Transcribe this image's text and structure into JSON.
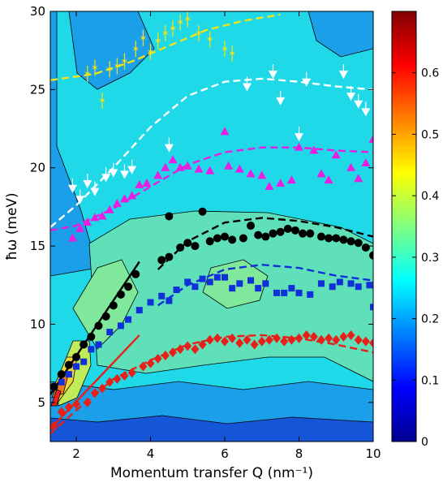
{
  "chart_data": {
    "type": "scatter",
    "title": "",
    "xlabel": "Momentum transfer Q (nm⁻¹)",
    "ylabel": "ħω (meV)",
    "xlim": [
      1.3,
      10
    ],
    "ylim": [
      2.5,
      30
    ],
    "x_ticks": [
      2,
      4,
      6,
      8,
      10
    ],
    "y_ticks": [
      5,
      10,
      15,
      20,
      25,
      30
    ],
    "grid": false,
    "background": "intensity contour map",
    "colorbar": {
      "min": 0,
      "max": 0.7,
      "ticks": [
        0,
        0.1,
        0.2,
        0.3,
        0.4,
        0.5,
        0.6
      ],
      "colormap": "jet"
    },
    "series": [
      {
        "marker": "star",
        "color": "#f2e21a",
        "points": [
          [
            2.3,
            26.0
          ],
          [
            2.5,
            26.4
          ],
          [
            2.7,
            24.3
          ],
          [
            2.9,
            26.3
          ],
          [
            3.1,
            26.5
          ],
          [
            3.3,
            26.8
          ],
          [
            3.6,
            27.6
          ],
          [
            3.8,
            28.3
          ],
          [
            4.0,
            27.4
          ],
          [
            4.2,
            28.1
          ],
          [
            4.4,
            28.6
          ],
          [
            4.6,
            28.9
          ],
          [
            4.8,
            29.3
          ],
          [
            5.0,
            29.5
          ],
          [
            5.3,
            28.6
          ],
          [
            5.6,
            28.2
          ],
          [
            6.0,
            27.6
          ],
          [
            6.2,
            27.3
          ]
        ]
      },
      {
        "marker": "triangle-down",
        "color": "#ffffff",
        "points": [
          [
            1.9,
            18.7
          ],
          [
            2.1,
            18.0
          ],
          [
            2.3,
            19.0
          ],
          [
            2.5,
            18.5
          ],
          [
            2.8,
            19.4
          ],
          [
            3.0,
            19.7
          ],
          [
            3.3,
            19.6
          ],
          [
            3.5,
            19.9
          ],
          [
            4.5,
            21.3
          ],
          [
            6.6,
            25.2
          ],
          [
            7.3,
            26.0
          ],
          [
            7.5,
            24.3
          ],
          [
            8.0,
            22.0
          ],
          [
            8.2,
            25.5
          ],
          [
            9.2,
            26.0
          ],
          [
            9.4,
            24.6
          ],
          [
            9.6,
            24.1
          ],
          [
            9.8,
            23.6
          ]
        ]
      },
      {
        "marker": "triangle-up",
        "color": "#e81ee0",
        "points": [
          [
            1.9,
            15.5
          ],
          [
            2.1,
            16.1
          ],
          [
            2.3,
            16.5
          ],
          [
            2.5,
            16.8
          ],
          [
            2.7,
            16.9
          ],
          [
            2.9,
            17.3
          ],
          [
            3.1,
            17.7
          ],
          [
            3.3,
            18.0
          ],
          [
            3.5,
            18.2
          ],
          [
            3.7,
            18.9
          ],
          [
            3.9,
            19.0
          ],
          [
            4.2,
            19.5
          ],
          [
            4.4,
            20.0
          ],
          [
            4.6,
            20.5
          ],
          [
            4.8,
            20.0
          ],
          [
            5.0,
            20.1
          ],
          [
            5.3,
            19.9
          ],
          [
            5.6,
            19.8
          ],
          [
            6.0,
            22.3
          ],
          [
            6.1,
            20.1
          ],
          [
            6.4,
            19.9
          ],
          [
            6.7,
            19.6
          ],
          [
            7.0,
            19.5
          ],
          [
            7.2,
            18.8
          ],
          [
            7.5,
            19.0
          ],
          [
            7.8,
            19.2
          ],
          [
            8.0,
            21.3
          ],
          [
            8.4,
            21.1
          ],
          [
            8.6,
            19.6
          ],
          [
            8.8,
            19.2
          ],
          [
            9.0,
            20.8
          ],
          [
            9.4,
            20.0
          ],
          [
            9.6,
            19.3
          ],
          [
            9.8,
            20.3
          ],
          [
            10.0,
            21.8
          ]
        ]
      },
      {
        "marker": "circle",
        "color": "#000000",
        "points": [
          [
            1.4,
            6.0
          ],
          [
            1.6,
            6.8
          ],
          [
            1.8,
            7.4
          ],
          [
            2.0,
            7.9
          ],
          [
            2.2,
            8.7
          ],
          [
            2.4,
            9.2
          ],
          [
            2.6,
            9.9
          ],
          [
            2.8,
            10.5
          ],
          [
            3.0,
            11.2
          ],
          [
            3.2,
            11.9
          ],
          [
            3.4,
            12.4
          ],
          [
            3.6,
            13.2
          ],
          [
            4.3,
            14.1
          ],
          [
            4.5,
            14.3
          ],
          [
            4.5,
            16.9
          ],
          [
            4.8,
            14.9
          ],
          [
            5.0,
            15.2
          ],
          [
            5.2,
            15.0
          ],
          [
            5.4,
            17.2
          ],
          [
            5.6,
            15.3
          ],
          [
            5.8,
            15.5
          ],
          [
            6.0,
            15.6
          ],
          [
            6.2,
            15.4
          ],
          [
            6.5,
            15.5
          ],
          [
            6.7,
            16.3
          ],
          [
            6.9,
            15.7
          ],
          [
            7.1,
            15.6
          ],
          [
            7.3,
            15.8
          ],
          [
            7.5,
            15.9
          ],
          [
            7.7,
            16.1
          ],
          [
            7.9,
            16.0
          ],
          [
            8.1,
            15.8
          ],
          [
            8.3,
            15.8
          ],
          [
            8.6,
            15.6
          ],
          [
            8.8,
            15.5
          ],
          [
            9.0,
            15.5
          ],
          [
            9.2,
            15.4
          ],
          [
            9.4,
            15.3
          ],
          [
            9.6,
            15.2
          ],
          [
            9.8,
            14.9
          ],
          [
            10.0,
            14.4
          ]
        ]
      },
      {
        "marker": "square",
        "color": "#1030d8",
        "points": [
          [
            1.6,
            6.3
          ],
          [
            1.8,
            6.8
          ],
          [
            2.0,
            7.3
          ],
          [
            2.2,
            7.6
          ],
          [
            2.4,
            8.4
          ],
          [
            2.6,
            8.7
          ],
          [
            2.9,
            9.5
          ],
          [
            3.2,
            9.9
          ],
          [
            3.4,
            10.3
          ],
          [
            3.7,
            10.9
          ],
          [
            4.0,
            11.4
          ],
          [
            4.3,
            11.8
          ],
          [
            4.5,
            11.5
          ],
          [
            4.7,
            12.2
          ],
          [
            5.0,
            12.7
          ],
          [
            5.2,
            12.4
          ],
          [
            5.4,
            12.9
          ],
          [
            5.6,
            12.7
          ],
          [
            5.8,
            13.0
          ],
          [
            6.0,
            13.0
          ],
          [
            6.2,
            12.3
          ],
          [
            6.4,
            12.6
          ],
          [
            6.7,
            12.8
          ],
          [
            6.9,
            12.3
          ],
          [
            7.1,
            12.6
          ],
          [
            7.4,
            12.0
          ],
          [
            7.6,
            12.0
          ],
          [
            7.8,
            12.3
          ],
          [
            8.0,
            12.0
          ],
          [
            8.3,
            11.9
          ],
          [
            8.6,
            12.6
          ],
          [
            8.9,
            12.4
          ],
          [
            9.1,
            12.7
          ],
          [
            9.4,
            12.6
          ],
          [
            9.6,
            12.4
          ],
          [
            9.9,
            12.5
          ],
          [
            10.0,
            11.1
          ]
        ]
      },
      {
        "marker": "diamond",
        "color": "#e8201a",
        "points": [
          [
            1.4,
            3.5
          ],
          [
            1.6,
            4.4
          ],
          [
            1.8,
            4.7
          ],
          [
            2.0,
            4.9
          ],
          [
            2.3,
            5.0
          ],
          [
            2.5,
            5.6
          ],
          [
            2.7,
            5.9
          ],
          [
            2.9,
            6.3
          ],
          [
            3.1,
            6.5
          ],
          [
            3.3,
            6.7
          ],
          [
            3.5,
            6.9
          ],
          [
            3.8,
            7.3
          ],
          [
            4.0,
            7.5
          ],
          [
            4.2,
            7.8
          ],
          [
            4.4,
            8.0
          ],
          [
            4.6,
            8.2
          ],
          [
            4.8,
            8.4
          ],
          [
            5.0,
            8.6
          ],
          [
            5.2,
            8.4
          ],
          [
            5.4,
            8.7
          ],
          [
            5.6,
            9.0
          ],
          [
            5.8,
            9.1
          ],
          [
            6.0,
            8.9
          ],
          [
            6.2,
            9.1
          ],
          [
            6.4,
            8.8
          ],
          [
            6.6,
            9.0
          ],
          [
            6.8,
            8.7
          ],
          [
            7.0,
            8.9
          ],
          [
            7.2,
            9.0
          ],
          [
            7.4,
            9.1
          ],
          [
            7.6,
            8.9
          ],
          [
            7.8,
            9.0
          ],
          [
            8.0,
            9.1
          ],
          [
            8.2,
            9.3
          ],
          [
            8.4,
            9.2
          ],
          [
            8.6,
            9.0
          ],
          [
            8.8,
            9.1
          ],
          [
            9.0,
            9.0
          ],
          [
            9.2,
            9.2
          ],
          [
            9.4,
            9.3
          ],
          [
            9.6,
            9.0
          ],
          [
            9.8,
            8.9
          ],
          [
            10.0,
            8.8
          ]
        ]
      }
    ],
    "fits": [
      {
        "color": "#f2e21a",
        "style": "dashed",
        "points": [
          [
            1.3,
            25.6
          ],
          [
            2.5,
            26.0
          ],
          [
            3.5,
            26.8
          ],
          [
            4.5,
            27.8
          ],
          [
            5.5,
            28.8
          ],
          [
            6.5,
            29.4
          ],
          [
            7.5,
            29.8
          ]
        ]
      },
      {
        "color": "#ffffff",
        "style": "dashed",
        "points": [
          [
            1.3,
            16.2
          ],
          [
            2.0,
            17.6
          ],
          [
            3.0,
            20.0
          ],
          [
            4.0,
            22.6
          ],
          [
            5.0,
            24.6
          ],
          [
            6.0,
            25.5
          ],
          [
            7.0,
            25.7
          ],
          [
            8.0,
            25.5
          ],
          [
            9.0,
            25.2
          ],
          [
            10.0,
            25.0
          ]
        ]
      },
      {
        "color": "#e81ee0",
        "style": "dashed",
        "points": [
          [
            1.3,
            16.0
          ],
          [
            2.0,
            16.3
          ],
          [
            3.0,
            17.4
          ],
          [
            4.0,
            18.8
          ],
          [
            5.0,
            20.2
          ],
          [
            6.0,
            21.0
          ],
          [
            7.0,
            21.3
          ],
          [
            8.0,
            21.3
          ],
          [
            9.0,
            21.1
          ],
          [
            10.0,
            21.0
          ]
        ]
      },
      {
        "color": "#000000",
        "style": "dashed",
        "points": [
          [
            4.2,
            13.5
          ],
          [
            5.0,
            15.3
          ],
          [
            6.0,
            16.5
          ],
          [
            7.0,
            16.8
          ],
          [
            8.0,
            16.6
          ],
          [
            9.0,
            16.2
          ],
          [
            10.0,
            15.6
          ]
        ]
      },
      {
        "color": "#1030d8",
        "style": "dashed",
        "points": [
          [
            4.2,
            11.2
          ],
          [
            5.0,
            12.5
          ],
          [
            6.0,
            13.5
          ],
          [
            7.0,
            13.8
          ],
          [
            8.0,
            13.6
          ],
          [
            9.0,
            13.1
          ],
          [
            10.0,
            12.8
          ]
        ]
      },
      {
        "color": "#e8201a",
        "style": "dashed",
        "points": [
          [
            1.3,
            3.0
          ],
          [
            2.0,
            4.5
          ],
          [
            3.0,
            6.5
          ],
          [
            4.0,
            7.7
          ],
          [
            5.0,
            8.7
          ],
          [
            6.0,
            9.2
          ],
          [
            7.0,
            9.3
          ],
          [
            8.0,
            9.1
          ],
          [
            9.0,
            8.7
          ],
          [
            10.0,
            8.2
          ]
        ]
      },
      {
        "color": "#000000",
        "style": "solid",
        "points": [
          [
            1.3,
            5.5
          ],
          [
            3.7,
            14.0
          ]
        ]
      },
      {
        "color": "#e8201a",
        "style": "solid",
        "points": [
          [
            1.3,
            3.3
          ],
          [
            3.7,
            9.3
          ]
        ]
      }
    ]
  }
}
